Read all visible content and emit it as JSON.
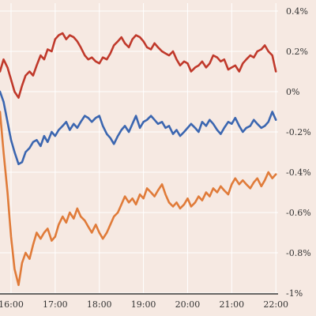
{
  "chart_data": {
    "type": "line",
    "title": "",
    "xlabel": "",
    "ylabel": "",
    "x_ticks": [
      {
        "label": "16:00",
        "t": 16.0
      },
      {
        "label": "17:00",
        "t": 17.0
      },
      {
        "label": "18:00",
        "t": 18.0
      },
      {
        "label": "19:00",
        "t": 19.0
      },
      {
        "label": "20:00",
        "t": 20.0
      },
      {
        "label": "21:00",
        "t": 21.0
      },
      {
        "label": "22:00",
        "t": 22.0
      }
    ],
    "y_ticks": [
      {
        "label": "0.4%",
        "v": 0.4
      },
      {
        "label": "0.2%",
        "v": 0.2
      },
      {
        "label": "0%",
        "v": 0.0
      },
      {
        "label": "-0.2%",
        "v": -0.2
      },
      {
        "label": "-0.4%",
        "v": -0.4
      },
      {
        "label": "-0.6%",
        "v": -0.6
      },
      {
        "label": "-0.8%",
        "v": -0.8
      },
      {
        "label": "-1%",
        "v": -1.0
      }
    ],
    "xlim": [
      15.75,
      22.05
    ],
    "ylim": [
      -1.0,
      0.4
    ],
    "grid": true,
    "y_axis_side": "right",
    "series": [
      {
        "color": "#c0392b",
        "x": [
          15.75,
          15.83,
          15.92,
          16.0,
          16.08,
          16.17,
          16.25,
          16.33,
          16.42,
          16.5,
          16.58,
          16.67,
          16.75,
          16.83,
          16.92,
          17.0,
          17.08,
          17.17,
          17.25,
          17.33,
          17.42,
          17.5,
          17.58,
          17.67,
          17.75,
          17.83,
          17.92,
          18.0,
          18.08,
          18.17,
          18.25,
          18.33,
          18.42,
          18.5,
          18.58,
          18.67,
          18.75,
          18.83,
          18.92,
          19.0,
          19.08,
          19.17,
          19.25,
          19.33,
          19.42,
          19.5,
          19.58,
          19.67,
          19.75,
          19.83,
          19.92,
          20.0,
          20.08,
          20.17,
          20.25,
          20.33,
          20.42,
          20.5,
          20.58,
          20.67,
          20.75,
          20.83,
          20.92,
          21.0,
          21.08,
          21.17,
          21.25,
          21.33,
          21.42,
          21.5,
          21.58,
          21.67,
          21.75,
          21.83,
          21.92,
          22.0
        ],
        "y": [
          0.1,
          0.16,
          0.12,
          0.06,
          0.0,
          -0.03,
          0.03,
          0.08,
          0.1,
          0.08,
          0.13,
          0.18,
          0.16,
          0.21,
          0.2,
          0.26,
          0.28,
          0.29,
          0.26,
          0.28,
          0.27,
          0.25,
          0.22,
          0.18,
          0.16,
          0.17,
          0.15,
          0.14,
          0.17,
          0.16,
          0.19,
          0.23,
          0.25,
          0.27,
          0.24,
          0.22,
          0.26,
          0.28,
          0.27,
          0.25,
          0.22,
          0.21,
          0.24,
          0.22,
          0.2,
          0.19,
          0.18,
          0.2,
          0.16,
          0.13,
          0.15,
          0.14,
          0.1,
          0.12,
          0.13,
          0.15,
          0.12,
          0.14,
          0.18,
          0.17,
          0.15,
          0.16,
          0.11,
          0.12,
          0.13,
          0.1,
          0.14,
          0.16,
          0.18,
          0.17,
          0.2,
          0.21,
          0.23,
          0.2,
          0.18,
          0.1
        ]
      },
      {
        "color": "#3b66b0",
        "x": [
          15.75,
          15.83,
          15.92,
          16.0,
          16.08,
          16.17,
          16.25,
          16.33,
          16.42,
          16.5,
          16.58,
          16.67,
          16.75,
          16.83,
          16.92,
          17.0,
          17.08,
          17.17,
          17.25,
          17.33,
          17.42,
          17.5,
          17.58,
          17.67,
          17.75,
          17.83,
          17.92,
          18.0,
          18.08,
          18.17,
          18.25,
          18.33,
          18.42,
          18.5,
          18.58,
          18.67,
          18.75,
          18.83,
          18.92,
          19.0,
          19.08,
          19.17,
          19.25,
          19.33,
          19.42,
          19.5,
          19.58,
          19.67,
          19.75,
          19.83,
          19.92,
          20.0,
          20.08,
          20.17,
          20.25,
          20.33,
          20.42,
          20.5,
          20.58,
          20.67,
          20.75,
          20.83,
          20.92,
          21.0,
          21.08,
          21.17,
          21.25,
          21.33,
          21.42,
          21.5,
          21.58,
          21.67,
          21.75,
          21.83,
          21.92,
          22.0
        ],
        "y": [
          0.0,
          -0.05,
          -0.15,
          -0.24,
          -0.3,
          -0.36,
          -0.35,
          -0.3,
          -0.28,
          -0.25,
          -0.24,
          -0.27,
          -0.22,
          -0.25,
          -0.2,
          -0.22,
          -0.19,
          -0.17,
          -0.15,
          -0.19,
          -0.16,
          -0.18,
          -0.15,
          -0.12,
          -0.13,
          -0.15,
          -0.13,
          -0.12,
          -0.17,
          -0.21,
          -0.23,
          -0.26,
          -0.22,
          -0.19,
          -0.17,
          -0.2,
          -0.16,
          -0.12,
          -0.18,
          -0.15,
          -0.14,
          -0.12,
          -0.14,
          -0.16,
          -0.15,
          -0.18,
          -0.17,
          -0.21,
          -0.19,
          -0.22,
          -0.2,
          -0.18,
          -0.16,
          -0.18,
          -0.2,
          -0.15,
          -0.17,
          -0.14,
          -0.16,
          -0.19,
          -0.21,
          -0.18,
          -0.15,
          -0.16,
          -0.13,
          -0.17,
          -0.2,
          -0.18,
          -0.17,
          -0.14,
          -0.16,
          -0.18,
          -0.17,
          -0.15,
          -0.1,
          -0.14
        ]
      },
      {
        "color": "#e07b39",
        "x": [
          15.75,
          15.83,
          15.92,
          16.0,
          16.08,
          16.17,
          16.25,
          16.33,
          16.42,
          16.5,
          16.58,
          16.67,
          16.75,
          16.83,
          16.92,
          17.0,
          17.08,
          17.17,
          17.25,
          17.33,
          17.42,
          17.5,
          17.58,
          17.67,
          17.75,
          17.83,
          17.92,
          18.0,
          18.08,
          18.17,
          18.25,
          18.33,
          18.42,
          18.5,
          18.58,
          18.67,
          18.75,
          18.83,
          18.92,
          19.0,
          19.08,
          19.17,
          19.25,
          19.33,
          19.42,
          19.5,
          19.58,
          19.67,
          19.75,
          19.83,
          19.92,
          20.0,
          20.08,
          20.17,
          20.25,
          20.33,
          20.42,
          20.5,
          20.58,
          20.67,
          20.75,
          20.83,
          20.92,
          21.0,
          21.08,
          21.17,
          21.25,
          21.33,
          21.42,
          21.5,
          21.58,
          21.67,
          21.75,
          21.83,
          21.92,
          22.0
        ],
        "y": [
          -0.1,
          -0.3,
          -0.5,
          -0.72,
          -0.88,
          -0.96,
          -0.85,
          -0.8,
          -0.83,
          -0.76,
          -0.7,
          -0.73,
          -0.7,
          -0.68,
          -0.74,
          -0.72,
          -0.66,
          -0.62,
          -0.65,
          -0.6,
          -0.63,
          -0.58,
          -0.62,
          -0.64,
          -0.67,
          -0.7,
          -0.66,
          -0.7,
          -0.73,
          -0.7,
          -0.66,
          -0.62,
          -0.6,
          -0.56,
          -0.52,
          -0.55,
          -0.53,
          -0.56,
          -0.51,
          -0.53,
          -0.48,
          -0.5,
          -0.52,
          -0.49,
          -0.46,
          -0.51,
          -0.55,
          -0.57,
          -0.55,
          -0.58,
          -0.56,
          -0.53,
          -0.57,
          -0.55,
          -0.52,
          -0.54,
          -0.5,
          -0.52,
          -0.48,
          -0.5,
          -0.47,
          -0.49,
          -0.51,
          -0.46,
          -0.43,
          -0.46,
          -0.44,
          -0.46,
          -0.48,
          -0.45,
          -0.43,
          -0.47,
          -0.44,
          -0.4,
          -0.43,
          -0.41
        ]
      }
    ]
  }
}
